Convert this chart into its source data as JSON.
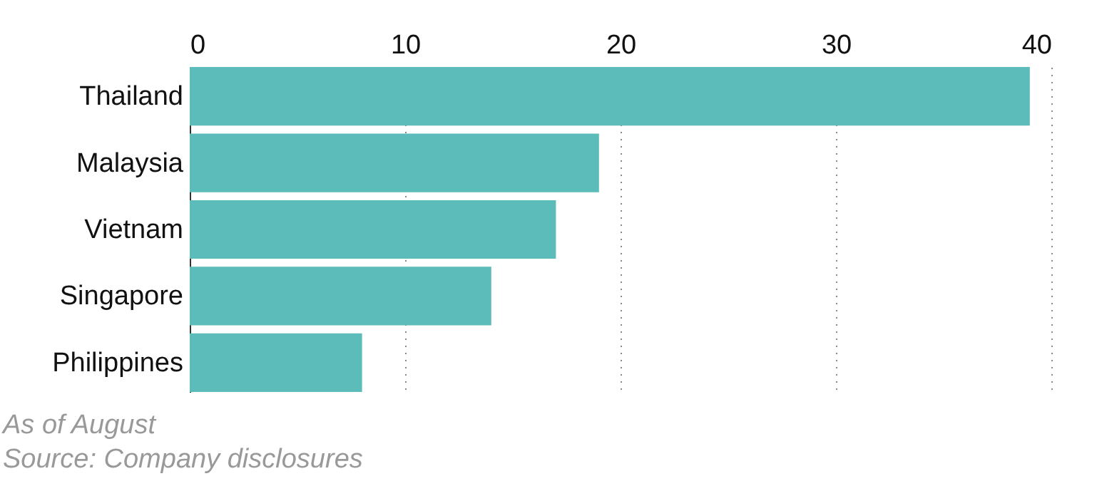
{
  "chart_data": {
    "type": "bar",
    "orientation": "horizontal",
    "categories": [
      "Thailand",
      "Malaysia",
      "Vietnam",
      "Singapore",
      "Philippines"
    ],
    "values": [
      39,
      19,
      17,
      14,
      8
    ],
    "color": "#5bbcb9",
    "xlim": [
      0,
      40
    ],
    "xticks": [
      0,
      10,
      20,
      30,
      40
    ],
    "grid": "x",
    "annotations": [
      "As of August",
      "Source: Company disclosures"
    ]
  }
}
